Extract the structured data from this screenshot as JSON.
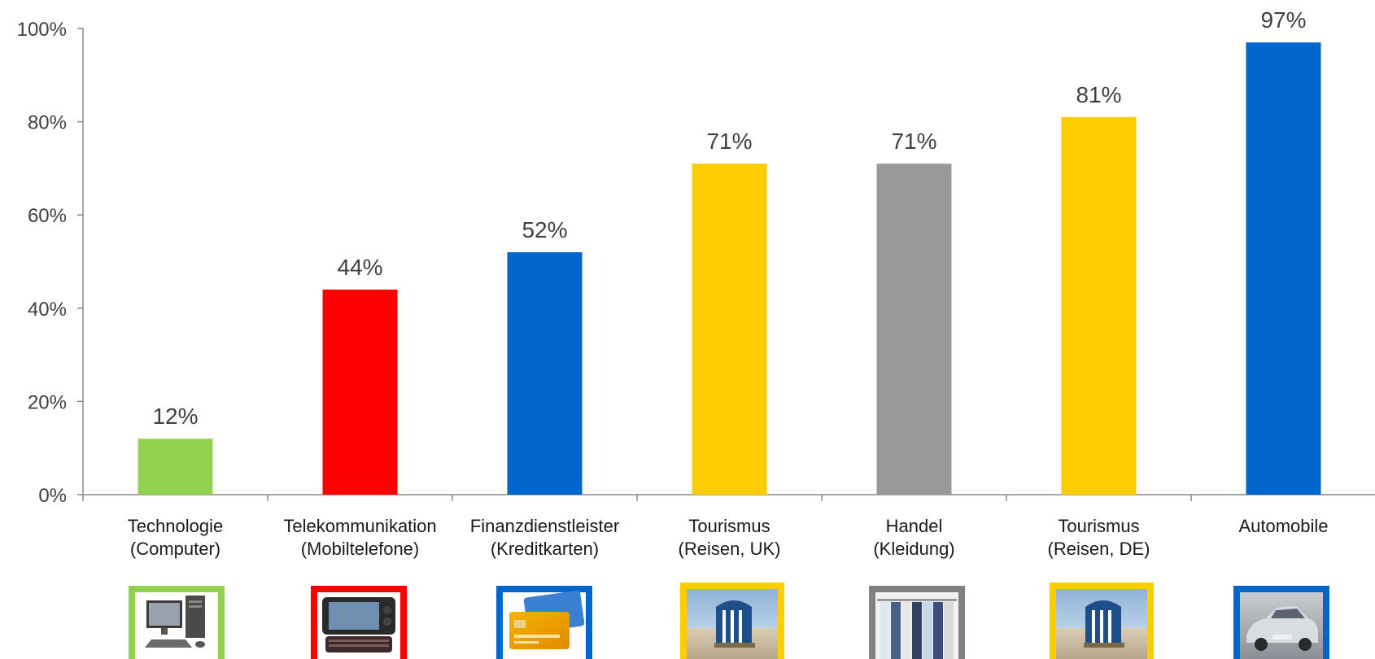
{
  "chart_data": {
    "type": "bar",
    "title": "",
    "xlabel": "",
    "ylabel": "",
    "ylim": [
      0,
      100
    ],
    "y_ticks": [
      "0%",
      "20%",
      "40%",
      "60%",
      "80%",
      "100%"
    ],
    "grid": false,
    "categories": [
      [
        "Technologie",
        "(Computer)"
      ],
      [
        "Telekommunikation",
        "(Mobiltelefone)"
      ],
      [
        "Finanzdienstleister",
        "(Kreditkarten)"
      ],
      [
        "Tourismus",
        "(Reisen, UK)"
      ],
      [
        "Handel",
        "(Kleidung)"
      ],
      [
        "Tourismus",
        "(Reisen, DE)"
      ],
      [
        "Automobile"
      ]
    ],
    "values": [
      12,
      44,
      52,
      71,
      71,
      81,
      97
    ],
    "value_labels": [
      "12%",
      "44%",
      "52%",
      "71%",
      "71%",
      "81%",
      "97%"
    ],
    "colors": [
      "#92d050",
      "#ff0000",
      "#0066cc",
      "#ffcc00",
      "#999999",
      "#ffcc00",
      "#0066cc"
    ],
    "thumbnails": [
      "computer-icon",
      "smartphone-icon",
      "credit-card-icon",
      "beach-chair-icon",
      "clothing-rack-icon",
      "beach-chair-icon",
      "car-icon"
    ]
  }
}
